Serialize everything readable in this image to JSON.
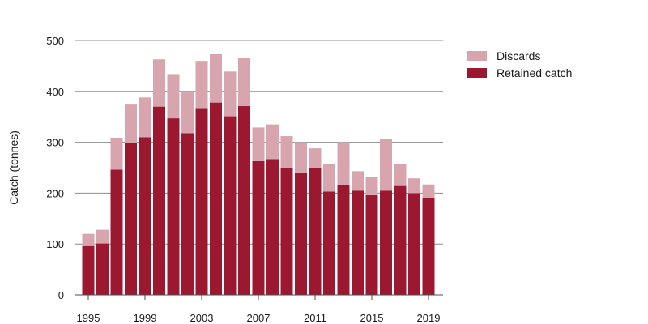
{
  "chart_data": {
    "type": "bar",
    "stacked": true,
    "title": "",
    "xlabel": "",
    "ylabel": "Catch (tonnes)",
    "ylim": [
      0,
      500
    ],
    "yticks": [
      "0",
      "100",
      "200",
      "300",
      "400",
      "500"
    ],
    "xticks": [
      "1995",
      "1999",
      "2003",
      "2007",
      "2011",
      "2015",
      "2019"
    ],
    "grid": true,
    "legend_position": "top-right",
    "categories": [
      "1995",
      "1996",
      "1997",
      "1998",
      "1999",
      "2000",
      "2001",
      "2002",
      "2003",
      "2004",
      "2005",
      "2006",
      "2007",
      "2008",
      "2009",
      "2010",
      "2011",
      "2012",
      "2013",
      "2014",
      "2015",
      "2016",
      "2017",
      "2018",
      "2019"
    ],
    "series": [
      {
        "name": "Retained catch",
        "color": "#9b1830",
        "values": [
          96,
          101,
          246,
          298,
          310,
          370,
          347,
          318,
          367,
          378,
          351,
          371,
          263,
          267,
          249,
          240,
          250,
          203,
          216,
          205,
          196,
          205,
          214,
          200,
          190
        ]
      },
      {
        "name": "Discards",
        "color": "#d8a5ae",
        "values": [
          24,
          27,
          63,
          76,
          78,
          93,
          87,
          80,
          93,
          95,
          88,
          94,
          66,
          68,
          63,
          60,
          38,
          55,
          84,
          38,
          35,
          101,
          44,
          29,
          27
        ]
      }
    ],
    "legend": [
      {
        "name": "Discards",
        "color": "#d8a5ae"
      },
      {
        "name": "Retained catch",
        "color": "#9b1830"
      }
    ]
  }
}
